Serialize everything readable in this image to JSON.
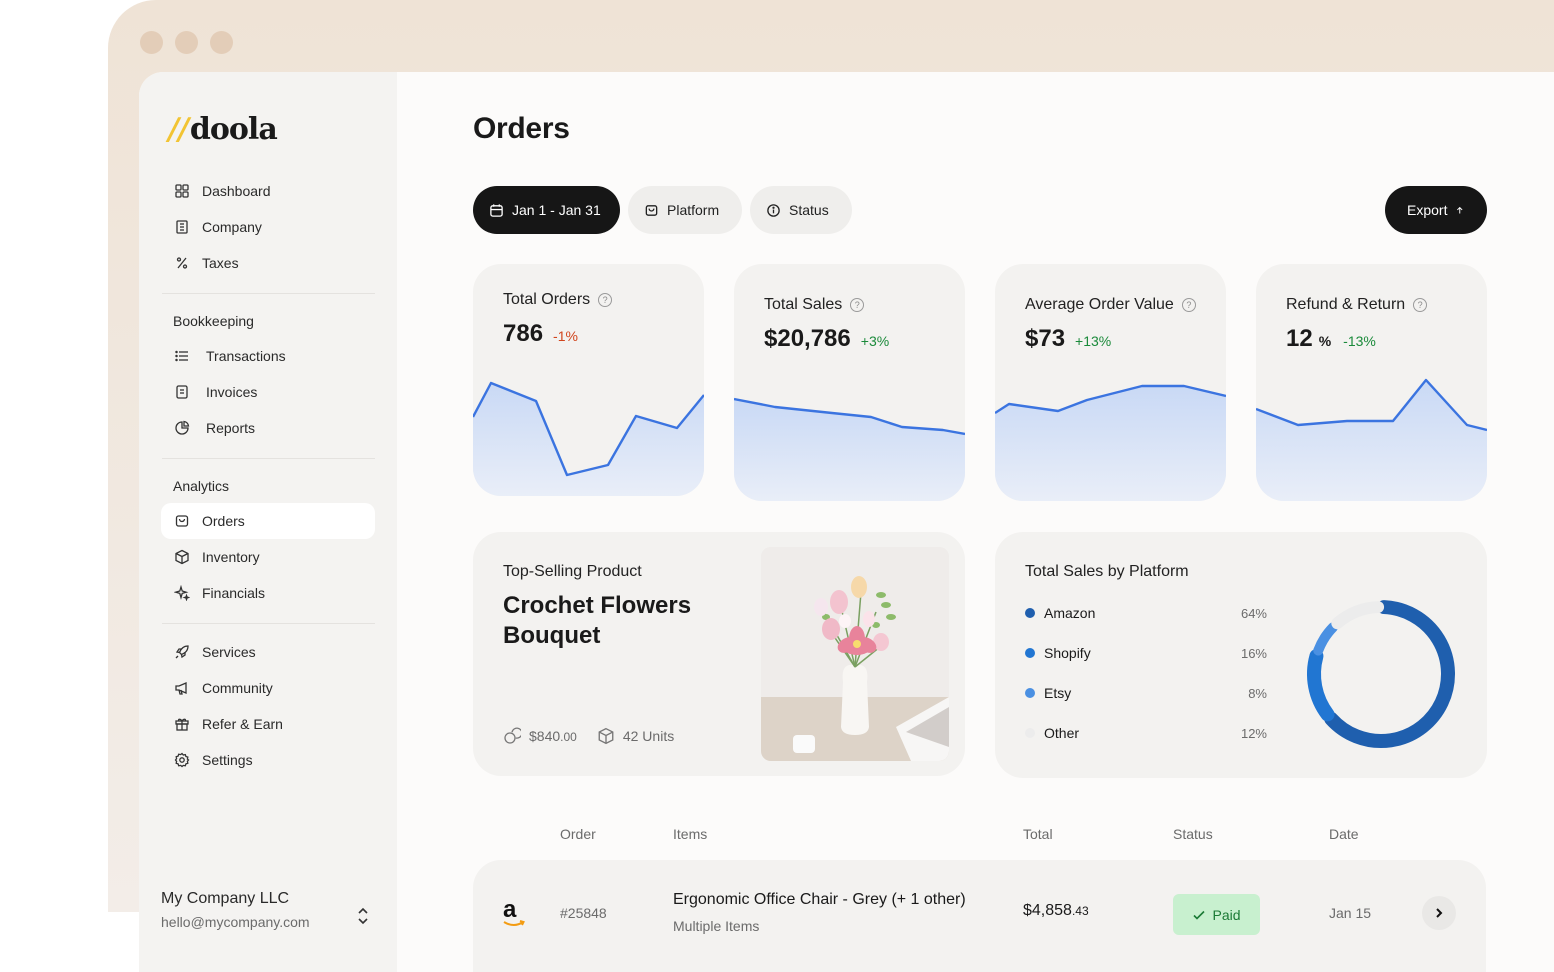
{
  "brand": {
    "logo_slashes": "//",
    "logo_text": "doola"
  },
  "sidebar": {
    "top_items": [
      {
        "label": "Dashboard",
        "icon": "grid-icon"
      },
      {
        "label": "Company",
        "icon": "building-icon"
      },
      {
        "label": "Taxes",
        "icon": "percent-icon"
      }
    ],
    "bookkeeping_heading": "Bookkeeping",
    "bookkeeping_items": [
      {
        "label": "Transactions",
        "icon": "list-icon"
      },
      {
        "label": "Invoices",
        "icon": "document-icon"
      },
      {
        "label": "Reports",
        "icon": "pie-chart-icon"
      }
    ],
    "analytics_heading": "Analytics",
    "analytics_items": [
      {
        "label": "Orders",
        "icon": "bag-icon",
        "active": true
      },
      {
        "label": "Inventory",
        "icon": "box-icon"
      },
      {
        "label": "Financials",
        "icon": "sparkle-icon"
      }
    ],
    "bottom_items": [
      {
        "label": "Services",
        "icon": "rocket-icon"
      },
      {
        "label": "Community",
        "icon": "megaphone-icon"
      },
      {
        "label": "Refer & Earn",
        "icon": "gift-icon"
      },
      {
        "label": "Settings",
        "icon": "gear-icon"
      }
    ],
    "company_name": "My Company LLC",
    "company_email": "hello@mycompany.com"
  },
  "page": {
    "title": "Orders"
  },
  "filters": {
    "date_label": "Jan 1 - Jan 31",
    "platform_label": "Platform",
    "status_label": "Status",
    "export_label": "Export"
  },
  "kpis": [
    {
      "title": "Total Orders",
      "value": "786",
      "unit": "",
      "change": "-1%",
      "trend": "negative"
    },
    {
      "title": "Total Sales",
      "value": "$20,786",
      "unit": "",
      "change": "+3%",
      "trend": "positive"
    },
    {
      "title": "Average Order Value",
      "value": "$73",
      "unit": "",
      "change": "+13%",
      "trend": "positive"
    },
    {
      "title": "Refund & Return",
      "value": "12",
      "unit": "%",
      "change": "-13%",
      "trend": "positive"
    }
  ],
  "top_product": {
    "label": "Top-Selling Product",
    "name": "Crochet Flowers Bouquet",
    "revenue_main": "$840",
    "revenue_cents": ".00",
    "units": "42 Units"
  },
  "platform_sales": {
    "title": "Total Sales by Platform",
    "items": [
      {
        "name": "Amazon",
        "pct": "64%",
        "value": 64,
        "color": "#1f5fae"
      },
      {
        "name": "Shopify",
        "pct": "16%",
        "value": 16,
        "color": "#2176d2"
      },
      {
        "name": "Etsy",
        "pct": "8%",
        "value": 8,
        "color": "#4a90e2"
      },
      {
        "name": "Other",
        "pct": "12%",
        "value": 12,
        "color": "#ececec"
      }
    ]
  },
  "table": {
    "headers": {
      "order": "Order",
      "items": "Items",
      "total": "Total",
      "status": "Status",
      "date": "Date"
    },
    "rows": [
      {
        "platform_icon": "amazon-icon",
        "platform_glyph": "a",
        "order": "#25848",
        "item_title": "Ergonomic Office Chair - Grey (+ 1 other)",
        "item_sub": "Multiple Items",
        "total_main": "$4,858",
        "total_cents": ".43",
        "status": "Paid",
        "date": "Jan 15"
      }
    ]
  },
  "colors": {
    "accent_blue": "#3b74e0",
    "positive": "#1a8a3a",
    "negative": "#d1451d",
    "paid_bg": "#c8f0cf"
  }
}
